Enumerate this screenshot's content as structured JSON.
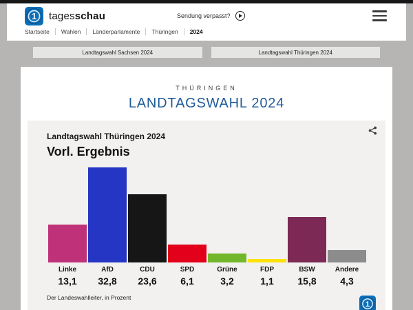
{
  "header": {
    "brand_light": "tages",
    "brand_bold": "schau",
    "sendung_verpasst": "Sendung verpasst?"
  },
  "breadcrumb": {
    "items": [
      "Startseite",
      "Wahlen",
      "Länderparlamente",
      "Thüringen",
      "2024"
    ]
  },
  "tabs": [
    {
      "label": "Landtagswahl Sachsen 2024"
    },
    {
      "label": "Landtagswahl Thüringen 2024"
    }
  ],
  "page": {
    "region": "THÜRINGEN",
    "title": "LANDTAGSWAHL 2024"
  },
  "chart_data": {
    "type": "bar",
    "title": "Landtagswahl Thüringen 2024",
    "subtitle": "Vorl. Ergebnis",
    "source": "Der Landeswahlleiter, in Prozent",
    "unit": "percent",
    "ylim": [
      0,
      35
    ],
    "categories": [
      "Linke",
      "AfD",
      "CDU",
      "SPD",
      "Grüne",
      "FDP",
      "BSW",
      "Andere"
    ],
    "values": [
      13.1,
      32.8,
      23.6,
      6.1,
      3.2,
      1.1,
      15.8,
      4.3
    ],
    "value_labels": [
      "13,1",
      "32,8",
      "23,6",
      "6,1",
      "3,2",
      "1,1",
      "15,8",
      "4,3"
    ],
    "colors": [
      "#bf3179",
      "#2535c4",
      "#161616",
      "#e2001a",
      "#72b72b",
      "#ffe10a",
      "#7c2956",
      "#8c8c8c"
    ]
  },
  "theme": {
    "accent_blue": "#1f5b9b",
    "logo_blue": "#0d6eb8",
    "icon_names": [
      "tagesschau-logo-icon",
      "play-icon",
      "menu-icon",
      "share-icon"
    ]
  }
}
